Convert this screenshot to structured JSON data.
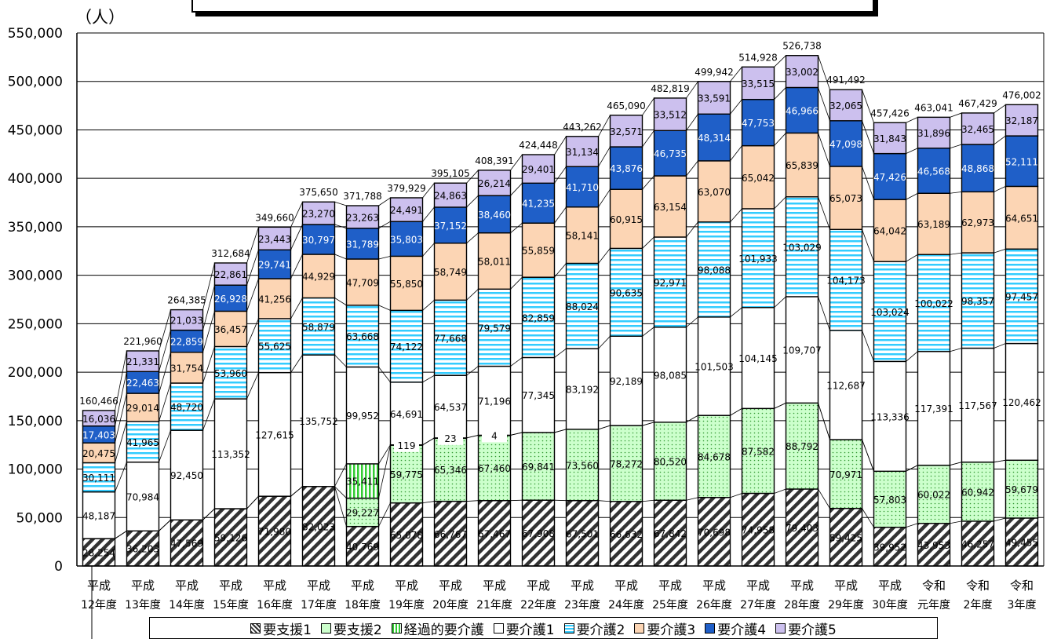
{
  "unit_label": "（人）",
  "chart_data": {
    "type": "bar",
    "stacked": true,
    "ylim": [
      0,
      550000
    ],
    "yticks": [
      "0",
      "50,000",
      "100,000",
      "150,000",
      "200,000",
      "250,000",
      "300,000",
      "350,000",
      "400,000",
      "450,000",
      "500,000",
      "550,000"
    ],
    "categories": [
      [
        "平成",
        "12年度"
      ],
      [
        "平成",
        "13年度"
      ],
      [
        "平成",
        "14年度"
      ],
      [
        "平成",
        "15年度"
      ],
      [
        "平成",
        "16年度"
      ],
      [
        "平成",
        "17年度"
      ],
      [
        "平成",
        "18年度"
      ],
      [
        "平成",
        "19年度"
      ],
      [
        "平成",
        "20年度"
      ],
      [
        "平成",
        "21年度"
      ],
      [
        "平成",
        "22年度"
      ],
      [
        "平成",
        "23年度"
      ],
      [
        "平成",
        "24年度"
      ],
      [
        "平成",
        "25年度"
      ],
      [
        "平成",
        "26年度"
      ],
      [
        "平成",
        "27年度"
      ],
      [
        "平成",
        "28年度"
      ],
      [
        "平成",
        "29年度"
      ],
      [
        "平成",
        "30年度"
      ],
      [
        "令和",
        "元年度"
      ],
      [
        "令和",
        "2年度"
      ],
      [
        "令和",
        "3年度"
      ]
    ],
    "series": [
      {
        "name": "要支援1",
        "color": "#ffffff",
        "pattern": "diag",
        "values": [
          28254,
          36203,
          47569,
          59126,
          71980,
          82023,
          40769,
          65078,
          66767,
          67467,
          67908,
          67501,
          66632,
          67842,
          70698,
          74958,
          79403,
          59425,
          39952,
          43953,
          46257,
          49455
        ]
      },
      {
        "name": "要支援2",
        "color": "#ccffcc",
        "pattern": "dots",
        "values": [
          0,
          0,
          0,
          0,
          0,
          0,
          29227,
          59775,
          65346,
          67460,
          69841,
          73560,
          78272,
          80520,
          84678,
          87582,
          88792,
          70971,
          57803,
          60022,
          60942,
          59679
        ]
      },
      {
        "name": "経過的要介護",
        "color": "#99ff99",
        "pattern": "vlines",
        "values": [
          0,
          0,
          0,
          0,
          0,
          0,
          35411,
          119,
          23,
          4,
          0,
          0,
          0,
          0,
          0,
          0,
          0,
          0,
          0,
          0,
          0,
          0
        ]
      },
      {
        "name": "要介護1",
        "color": "#ffffff",
        "pattern": "none",
        "values": [
          48187,
          70984,
          92450,
          113352,
          127615,
          135752,
          99952,
          64691,
          64537,
          71196,
          77345,
          83192,
          92189,
          98085,
          101503,
          104145,
          109707,
          112687,
          113336,
          117391,
          117567,
          120462
        ]
      },
      {
        "name": "要介護2",
        "color": "#ccffff",
        "pattern": "hlines",
        "values": [
          30111,
          41965,
          48720,
          53960,
          55625,
          58879,
          63668,
          74122,
          77668,
          79579,
          82859,
          88024,
          90635,
          92971,
          98088,
          101933,
          103029,
          104173,
          103024,
          100022,
          98357,
          97457
        ]
      },
      {
        "name": "要介護3",
        "color": "#fcd5b4",
        "pattern": "none",
        "values": [
          20475,
          29014,
          31754,
          36457,
          41256,
          44929,
          47709,
          55850,
          58749,
          58011,
          55859,
          58141,
          60915,
          63154,
          63070,
          65042,
          65839,
          65073,
          64042,
          63189,
          62973,
          64651
        ]
      },
      {
        "name": "要介護4",
        "color": "#1f5fc8",
        "pattern": "none",
        "values": [
          17403,
          22463,
          22859,
          26928,
          29741,
          30797,
          31789,
          35803,
          37152,
          38460,
          41235,
          41710,
          43876,
          46735,
          48314,
          47753,
          46966,
          47098,
          47426,
          46568,
          48868,
          52111
        ]
      },
      {
        "name": "要介護5",
        "color": "#ccc0ee",
        "pattern": "none",
        "values": [
          16036,
          21331,
          21033,
          22861,
          23443,
          23270,
          23263,
          24491,
          24863,
          26214,
          29401,
          31134,
          32571,
          33512,
          33591,
          33515,
          33002,
          32065,
          31843,
          31896,
          32465,
          32187
        ]
      }
    ],
    "totals": [
      160466,
      221960,
      264385,
      312684,
      349660,
      375650,
      371788,
      379929,
      395105,
      408391,
      424448,
      443262,
      465090,
      482819,
      499942,
      514928,
      526738,
      491492,
      457426,
      463041,
      467429,
      476002
    ],
    "legend": {
      "position": "bottom",
      "items": [
        "要支援1",
        "要支援2",
        "経過的要介護",
        "要介護1",
        "要介護2",
        "要介護3",
        "要介護4",
        "要介護5"
      ]
    }
  }
}
